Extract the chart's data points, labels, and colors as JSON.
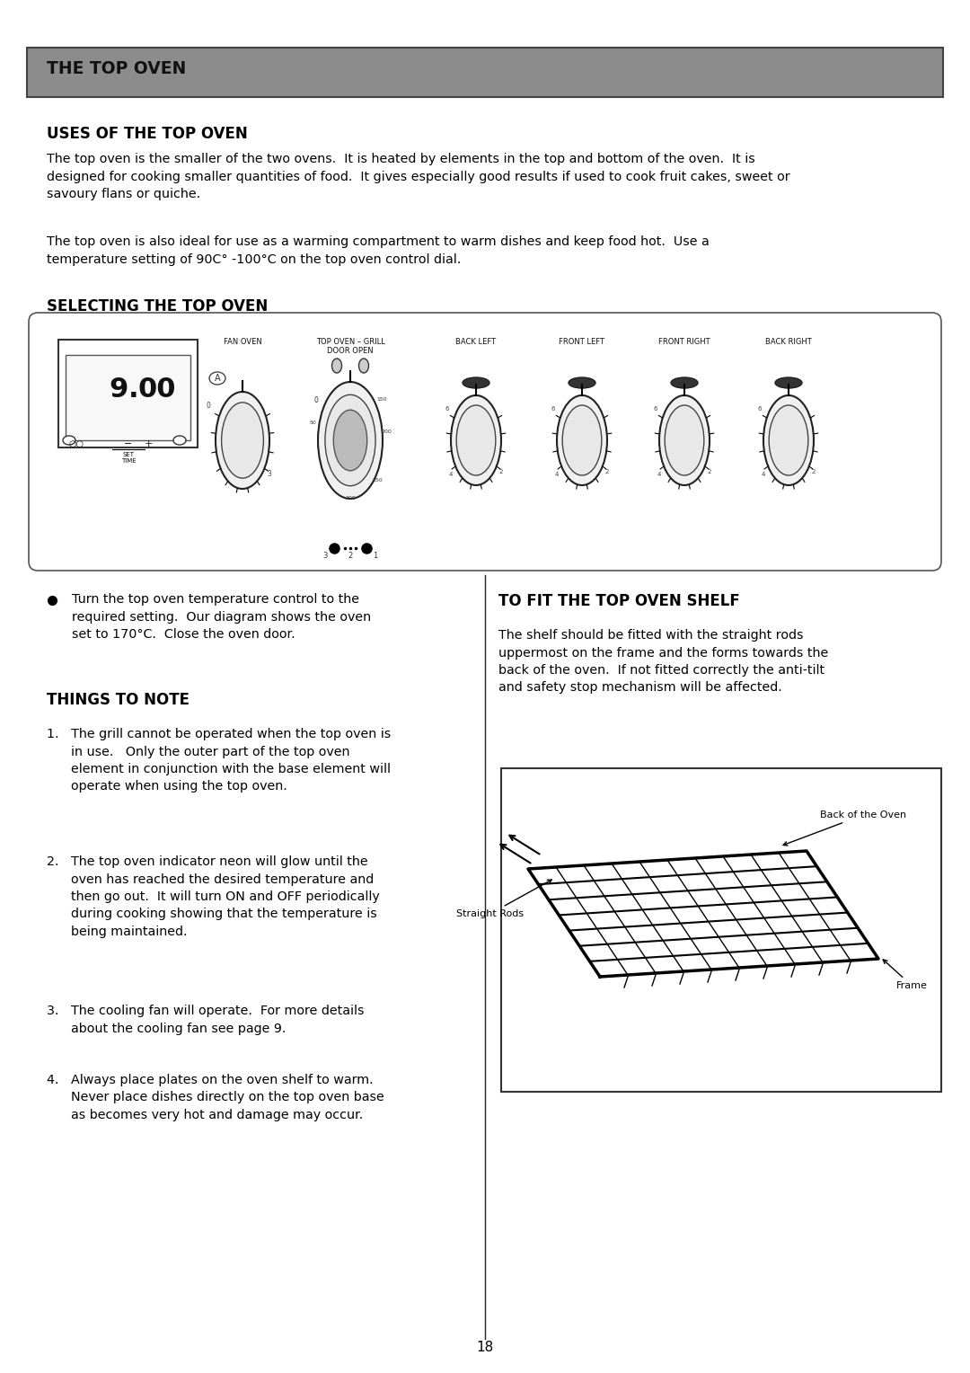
{
  "page_title": "THE TOP OVEN",
  "section1_title": "USES OF THE TOP OVEN",
  "section1_para1": "The top oven is the smaller of the two ovens.  It is heated by elements in the top and bottom of the oven.  It is\ndesigned for cooking smaller quantities of food.  It gives especially good results if used to cook fruit cakes, sweet or\nsavoury flans or quiche.",
  "section1_para2": "The top oven is also ideal for use as a warming compartment to warm dishes and keep food hot.  Use a\ntemperature setting of 90C° -100°C on the top oven control dial.",
  "section2_title": "SELECTING THE TOP OVEN",
  "section3_title": "THINGS TO NOTE",
  "section4_title": "TO FIT THE TOP OVEN SHELF",
  "section4_para": "The shelf should be fitted with the straight rods\nuppermost on the frame and the forms towards the\nback of the oven.  If not fitted correctly the anti-tilt\nand safety stop mechanism will be affected.",
  "page_number": "18",
  "header_bg_color": "#8c8c8c",
  "bg_color": "#ffffff",
  "text_color": "#000000"
}
